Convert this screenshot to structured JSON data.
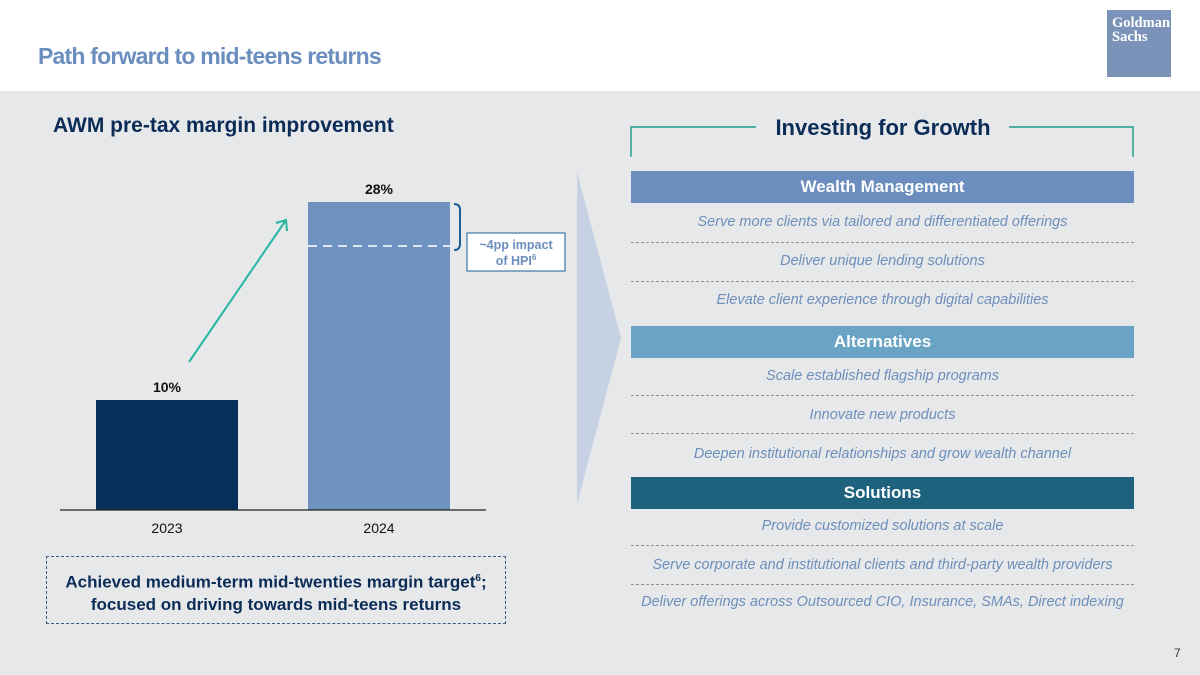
{
  "header": {
    "title": "Path forward to mid-teens returns"
  },
  "logo": {
    "line1": "Goldman",
    "line2": "Sachs"
  },
  "chart_title": "AWM pre-tax margin improvement",
  "chart_data": {
    "type": "bar",
    "categories": [
      "2023",
      "2024"
    ],
    "values": [
      10,
      28
    ],
    "value_labels": [
      "10%",
      "28%"
    ],
    "unit": "%",
    "ylim": [
      0,
      30
    ],
    "grid": false,
    "colors": [
      "#06305b",
      "#6e93c0"
    ],
    "annotation": {
      "label": "~4pp impact",
      "label2": "of HPI",
      "superscript": "6",
      "value": 4,
      "applies_to": "2024"
    }
  },
  "achieved": {
    "line1": "Achieved medium-term mid-twenties margin target",
    "sup": "6",
    "line1_suffix": ";",
    "line2": "focused on driving towards mid-teens returns"
  },
  "growth": {
    "title": "Investing for Growth",
    "sections": [
      {
        "label": "Wealth Management",
        "color": "#6c8ebf",
        "items": [
          "Serve more clients via tailored and differentiated offerings",
          "Deliver unique lending solutions",
          "Elevate client experience through digital capabilities"
        ]
      },
      {
        "label": "Alternatives",
        "color": "#6aa4c4",
        "items": [
          "Scale established flagship programs",
          "Innovate new products",
          "Deepen institutional relationships and grow wealth channel"
        ]
      },
      {
        "label": "Solutions",
        "color": "#1e627e",
        "items": [
          "Provide customized solutions at scale",
          "Serve corporate and institutional clients and third-party wealth providers",
          "Deliver offerings across Outsourced CIO, Insurance, SMAs, Direct indexing"
        ]
      }
    ]
  },
  "page_number": "7"
}
